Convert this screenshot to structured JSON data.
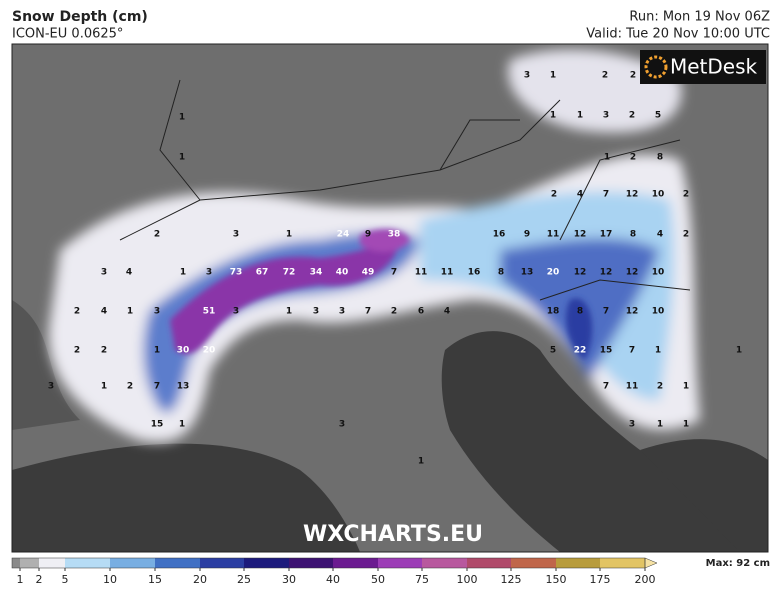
{
  "header": {
    "title": "Snow Depth (cm)",
    "subtitle": "ICON-EU 0.0625°",
    "run": "Run: Mon 19 Nov 06Z",
    "valid": "Valid: Tue 20 Nov 10:00 UTC"
  },
  "logo": "MetDesk",
  "watermark": "WXCHARTS.EU",
  "map_labels": [
    3,
    1,
    2,
    2,
    1,
    1,
    1,
    3,
    2,
    5,
    1,
    1,
    2,
    8,
    2,
    4,
    7,
    12,
    10,
    2,
    2,
    3,
    1,
    24,
    9,
    38,
    16,
    9,
    11,
    12,
    17,
    8,
    4,
    2,
    3,
    4,
    1,
    3,
    73,
    67,
    72,
    34,
    40,
    49,
    7,
    11,
    11,
    16,
    8,
    13,
    20,
    12,
    12,
    12,
    10,
    2,
    4,
    1,
    3,
    51,
    3,
    1,
    3,
    3,
    7,
    2,
    6,
    4,
    18,
    8,
    7,
    12,
    10,
    2,
    2,
    1,
    30,
    20,
    5,
    22,
    15,
    7,
    1,
    1,
    3,
    1,
    2,
    7,
    13,
    7,
    11,
    2,
    1,
    15,
    1,
    3,
    3,
    1,
    1,
    1
  ],
  "legend": {
    "ticks": [
      1,
      2,
      5,
      10,
      15,
      20,
      25,
      30,
      40,
      50,
      75,
      100,
      125,
      150,
      175,
      200
    ],
    "colors": [
      "#8a8a8a",
      "#b0b0b0",
      "#efeff4",
      "#b6dcf5",
      "#78aee2",
      "#4070c4",
      "#2b3ea2",
      "#1c1a7c",
      "#3d1272",
      "#6b1b90",
      "#9c3db6",
      "#b8589e",
      "#b04a6a",
      "#c0664a",
      "#b89c3c",
      "#e2c464"
    ],
    "over_color": "#f6e2a4",
    "max": "Max: 92 cm"
  }
}
